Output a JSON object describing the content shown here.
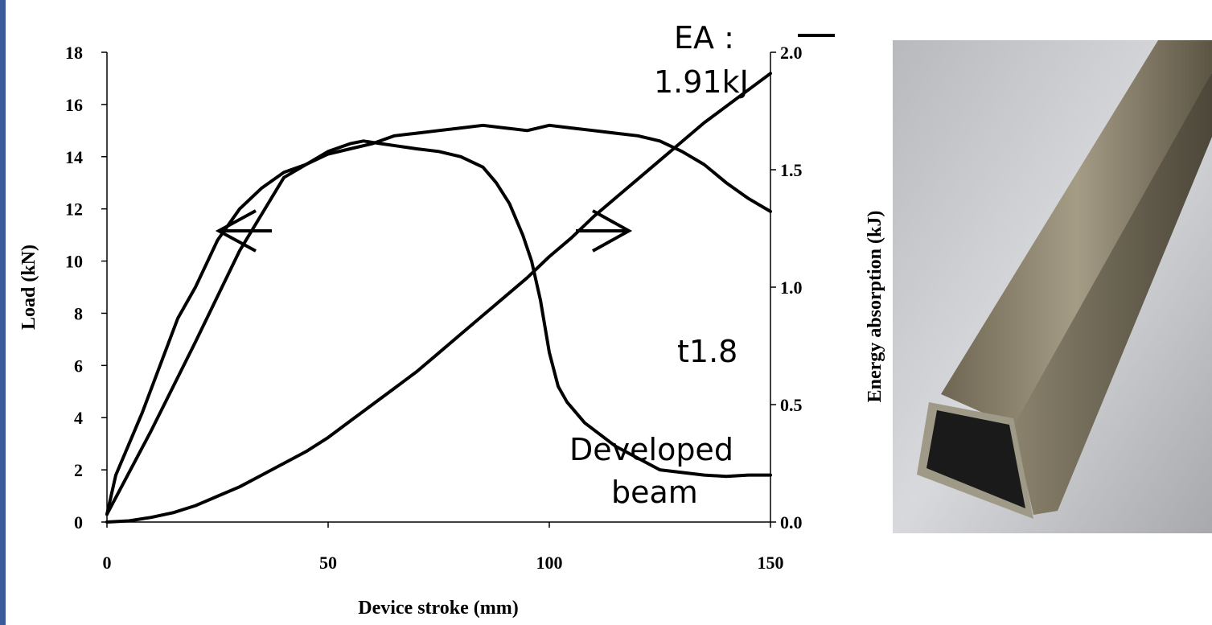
{
  "colors": {
    "left_bar": "#3a5a9b",
    "curve": "#000000"
  },
  "chart_data": {
    "type": "line",
    "xlabel": "Device stroke (mm)",
    "ylabel": "Load (kN)",
    "y2label": "Energy absorption (kJ)",
    "xlim": [
      0,
      150
    ],
    "ylim": [
      0,
      18
    ],
    "y2lim": [
      0,
      2.0
    ],
    "x_ticks": [
      "0",
      "50",
      "100",
      "150"
    ],
    "y_ticks": [
      "0",
      "2",
      "4",
      "6",
      "8",
      "10",
      "12",
      "14",
      "16",
      "18"
    ],
    "y2_ticks": [
      "0.0",
      "0.5",
      "1.0",
      "1.5",
      "2.0"
    ],
    "grid": false,
    "series": [
      {
        "axis": "left",
        "x": [
          0,
          2,
          5,
          8,
          12,
          16,
          20,
          25,
          30,
          35,
          40,
          45,
          50,
          55,
          60,
          65,
          70,
          75,
          80,
          85,
          90,
          95,
          100,
          105,
          110,
          115,
          120,
          125,
          130,
          135,
          140,
          145,
          150
        ],
        "values": [
          0.3,
          1.8,
          3.0,
          4.2,
          6.0,
          7.8,
          9.0,
          10.8,
          12.0,
          12.8,
          13.4,
          13.7,
          14.1,
          14.3,
          14.5,
          14.8,
          14.9,
          15.0,
          15.1,
          15.2,
          15.1,
          15.0,
          15.2,
          15.1,
          15.0,
          14.9,
          14.8,
          14.6,
          14.2,
          13.7,
          13.0,
          12.4,
          11.9
        ]
      },
      {
        "axis": "right",
        "x": [
          0,
          5,
          10,
          15,
          20,
          25,
          30,
          35,
          40,
          45,
          50,
          55,
          60,
          65,
          70,
          75,
          80,
          85,
          90,
          95,
          100,
          105,
          110,
          115,
          120,
          125,
          130,
          135,
          140,
          145,
          150
        ],
        "values": [
          0.0,
          0.005,
          0.02,
          0.04,
          0.07,
          0.11,
          0.15,
          0.2,
          0.25,
          0.3,
          0.36,
          0.43,
          0.5,
          0.57,
          0.64,
          0.72,
          0.8,
          0.88,
          0.96,
          1.04,
          1.13,
          1.21,
          1.3,
          1.38,
          1.46,
          1.54,
          1.62,
          1.7,
          1.77,
          1.84,
          1.91
        ]
      },
      {
        "axis": "left",
        "x": [
          0,
          10,
          20,
          30,
          40,
          50,
          55,
          58,
          62,
          66,
          70,
          75,
          80,
          85,
          88,
          91,
          94,
          96,
          98,
          100,
          102,
          104,
          108,
          115,
          125,
          135,
          140,
          145,
          150
        ],
        "values": [
          0.3,
          3.5,
          6.9,
          10.4,
          13.2,
          14.2,
          14.5,
          14.6,
          14.5,
          14.4,
          14.3,
          14.2,
          14.0,
          13.6,
          13.0,
          12.2,
          11.0,
          10.0,
          8.5,
          6.5,
          5.2,
          4.6,
          3.8,
          2.9,
          2.0,
          1.8,
          1.75,
          1.8,
          1.8
        ]
      }
    ],
    "annotations": {
      "ea_label": "EA :",
      "ea_value": "1.91kJ",
      "thickness": "t1.8",
      "developed_line1": "Developed",
      "developed_line2": "beam"
    }
  },
  "photo": {
    "icon": "square-tube-beam-photo"
  }
}
